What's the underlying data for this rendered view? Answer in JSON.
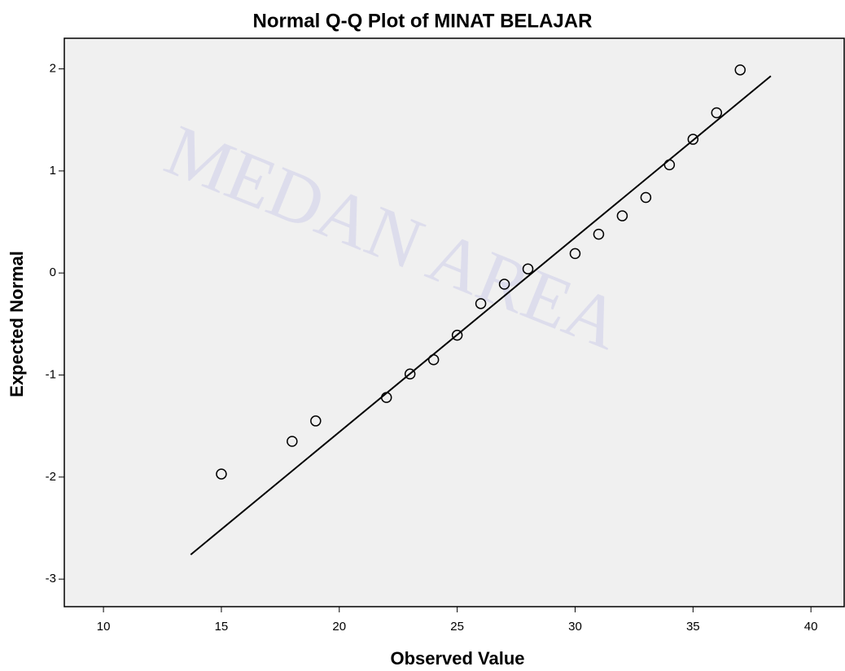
{
  "chart_data": {
    "type": "scatter",
    "title": "Normal Q-Q Plot of MINAT BELAJAR",
    "x_label": "Observed Value",
    "y_label": "Expected Normal",
    "watermark": "MEDAN AREA",
    "x": [
      15,
      18,
      19,
      22,
      23,
      24,
      25,
      26,
      27,
      28,
      30,
      31,
      32,
      33,
      34,
      35,
      36,
      37
    ],
    "values": [
      -1.97,
      -1.65,
      -1.45,
      -1.22,
      -0.99,
      -0.85,
      -0.61,
      -0.3,
      -0.11,
      0.04,
      0.19,
      0.38,
      0.56,
      0.74,
      1.06,
      1.31,
      1.57,
      1.99
    ],
    "reference_line": {
      "x": [
        13.7,
        38.3
      ],
      "y": [
        -2.76,
        1.93
      ]
    },
    "xlim": [
      8.34,
      41.41
    ],
    "ylim": [
      -3.27,
      2.3
    ],
    "xticks": [
      10,
      15,
      20,
      25,
      30,
      35,
      40
    ],
    "yticks": [
      -3,
      -2,
      -1,
      0,
      1,
      2
    ],
    "color": "#000000",
    "background": "#f0f0f0"
  }
}
